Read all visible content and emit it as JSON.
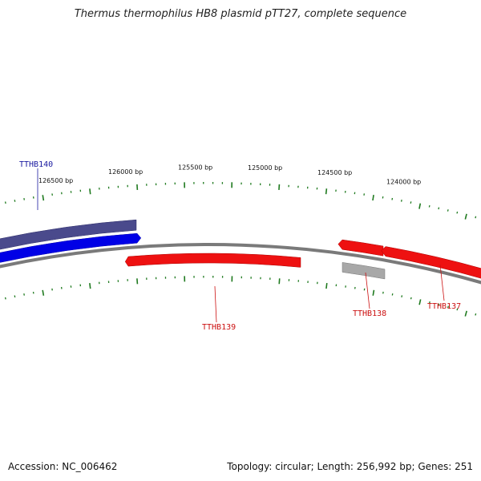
{
  "title": "Thermus thermophilus HB8 plasmid pTT27, complete sequence",
  "footer": {
    "accession": "Accession: NC_006462",
    "summary": "Topology: circular; Length: 256,992 bp; Genes: 251"
  },
  "colors": {
    "forward_dark": "#4a4a8c",
    "forward": "#0000e6",
    "reverse": "#ee1111",
    "neutral": "#a8a8a8",
    "backbone": "#7a7a7a",
    "ticks": "#1f7a1f",
    "label_forward": "#1a1aa0",
    "label_reverse": "#cc1111"
  },
  "scale_labels": [
    {
      "pos_bp": 126500,
      "text": "126500 bp"
    },
    {
      "pos_bp": 126000,
      "text": "126000 bp"
    },
    {
      "pos_bp": 125500,
      "text": "125500 bp"
    },
    {
      "pos_bp": 125000,
      "text": "125000 bp"
    },
    {
      "pos_bp": 124500,
      "text": "124500 bp"
    },
    {
      "pos_bp": 124000,
      "text": "124000 bp"
    }
  ],
  "genes": [
    {
      "name": "TTHB140",
      "track": "outer",
      "strand": "+",
      "color": "forward_dark",
      "label": true
    },
    {
      "name": "TTHB140",
      "track": "middle",
      "strand": "+",
      "color": "forward",
      "label": false
    },
    {
      "name": "TTHB139",
      "track": "inner",
      "strand": "-",
      "color": "reverse",
      "label": true
    },
    {
      "name": "TTHB138",
      "track": "middle",
      "strand": "-",
      "color": "reverse",
      "label": true
    },
    {
      "name": "TTHB138",
      "track": "inner",
      "strand": "+",
      "color": "neutral",
      "label": false
    },
    {
      "name": "TTHB137",
      "track": "middle",
      "strand": "-",
      "color": "reverse",
      "label": true
    }
  ]
}
